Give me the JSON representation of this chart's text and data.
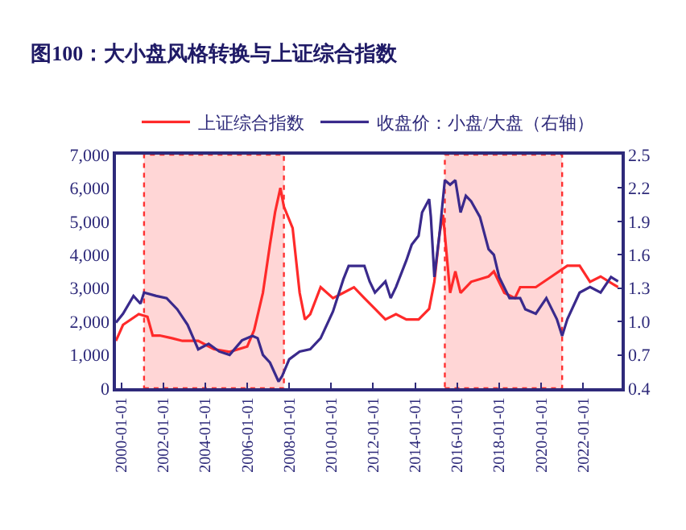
{
  "chart_data": {
    "type": "line",
    "title": "图100：大小盘风格转换与上证综合指数",
    "xlim": [
      "1999-10",
      "2023-11"
    ],
    "xticks": [
      "2000-01-01",
      "2002-01-01",
      "2004-01-01",
      "2006-01-01",
      "2008-01-01",
      "2010-01-01",
      "2012-01-01",
      "2014-01-01",
      "2016-01-01",
      "2018-01-01",
      "2020-01-01",
      "2022-01-01"
    ],
    "ylim": [
      0,
      7000
    ],
    "yticks": [
      0,
      {
        "value": 1000,
        "label": "1,000"
      },
      {
        "value": 2000,
        "label": "2,000"
      },
      {
        "value": 3000,
        "label": "3,000"
      },
      {
        "value": 4000,
        "label": "4,000"
      },
      {
        "value": 5000,
        "label": "5,000"
      },
      {
        "value": 6000,
        "label": "6,000"
      },
      {
        "value": 7000,
        "label": "7,000"
      }
    ],
    "y2lim": [
      0.4,
      2.5
    ],
    "y2ticks": [
      0.4,
      0.7,
      {
        "value": 1.0,
        "label": "1.0"
      },
      1.3,
      1.6,
      1.9,
      2.2,
      2.5
    ],
    "series": [
      {
        "name": "上证综合指数",
        "color": "#ff2a2a",
        "x": [
          "1999-10",
          "2000-02",
          "2000-11",
          "2001-04",
          "2001-07",
          "2001-11",
          "2002-06",
          "2002-12",
          "2003-09",
          "2004-06",
          "2005-03",
          "2006-01",
          "2006-05",
          "2006-10",
          "2007-02",
          "2007-05",
          "2007-08",
          "2007-10",
          "2008-03",
          "2008-07",
          "2008-10",
          "2009-01",
          "2009-07",
          "2010-02",
          "2010-08",
          "2011-02",
          "2011-08",
          "2012-02",
          "2012-08",
          "2013-02",
          "2013-08",
          "2014-03",
          "2014-09",
          "2014-12",
          "2015-03",
          "2015-05",
          "2015-09",
          "2015-12",
          "2016-03",
          "2016-09",
          "2017-07",
          "2017-10",
          "2018-04",
          "2018-10",
          "2019-01",
          "2019-10",
          "2020-07",
          "2021-04",
          "2021-11",
          "2022-05",
          "2022-11",
          "2023-09"
        ],
        "values": [
          1420,
          1900,
          2220,
          2140,
          1580,
          1580,
          1500,
          1420,
          1420,
          1170,
          1090,
          1250,
          1740,
          2860,
          4310,
          5280,
          6000,
          5440,
          4800,
          2860,
          2060,
          2220,
          3030,
          2700,
          2860,
          3025,
          2700,
          2380,
          2060,
          2220,
          2060,
          2060,
          2380,
          3190,
          4630,
          5200,
          2860,
          3500,
          2860,
          3190,
          3350,
          3500,
          2860,
          2700,
          3030,
          3030,
          3350,
          3670,
          3670,
          3190,
          3350,
          3030
        ]
      },
      {
        "name": "收盘价：小盘/大盘（右轴）",
        "color": "#3a2a8c",
        "axis": "y2",
        "x": [
          "1999-10",
          "2000-02",
          "2000-08",
          "2000-12",
          "2001-02",
          "2001-09",
          "2002-03",
          "2002-09",
          "2003-03",
          "2003-09",
          "2004-03",
          "2004-09",
          "2005-03",
          "2005-10",
          "2006-04",
          "2006-07",
          "2006-10",
          "2007-02",
          "2007-07",
          "2007-09",
          "2008-01",
          "2008-07",
          "2009-01",
          "2009-07",
          "2010-02",
          "2010-08",
          "2010-11",
          "2011-08",
          "2011-11",
          "2012-02",
          "2012-08",
          "2012-11",
          "2013-02",
          "2013-08",
          "2013-11",
          "2014-03",
          "2014-05",
          "2014-09",
          "2014-10",
          "2014-12",
          "2015-03",
          "2015-06",
          "2015-09",
          "2015-12",
          "2016-03",
          "2016-06",
          "2016-09",
          "2017-02",
          "2017-07",
          "2017-10",
          "2018-01",
          "2018-07",
          "2019-01",
          "2019-04",
          "2019-10",
          "2020-04",
          "2020-10",
          "2021-01",
          "2021-04",
          "2021-11",
          "2022-05",
          "2022-11",
          "2023-05",
          "2023-09"
        ],
        "values": [
          0.99,
          1.07,
          1.23,
          1.16,
          1.26,
          1.23,
          1.21,
          1.11,
          0.97,
          0.75,
          0.8,
          0.73,
          0.7,
          0.83,
          0.87,
          0.85,
          0.7,
          0.63,
          0.46,
          0.51,
          0.66,
          0.73,
          0.75,
          0.85,
          1.09,
          1.38,
          1.5,
          1.5,
          1.36,
          1.26,
          1.36,
          1.21,
          1.31,
          1.55,
          1.69,
          1.77,
          1.98,
          2.1,
          1.94,
          1.4,
          1.79,
          2.27,
          2.23,
          2.27,
          1.98,
          2.13,
          2.08,
          1.94,
          1.65,
          1.6,
          1.4,
          1.21,
          1.21,
          1.11,
          1.07,
          1.21,
          1.02,
          0.87,
          1.02,
          1.26,
          1.31,
          1.26,
          1.4,
          1.36
        ]
      }
    ],
    "bands": [
      {
        "axis": "x",
        "from": "2001-02",
        "to": "2007-10",
        "color": "#ffd6d6"
      },
      {
        "axis": "x",
        "from": "2015-06",
        "to": "2021-01",
        "color": "#ffd6d6"
      }
    ],
    "legend": "top",
    "grid": false
  }
}
